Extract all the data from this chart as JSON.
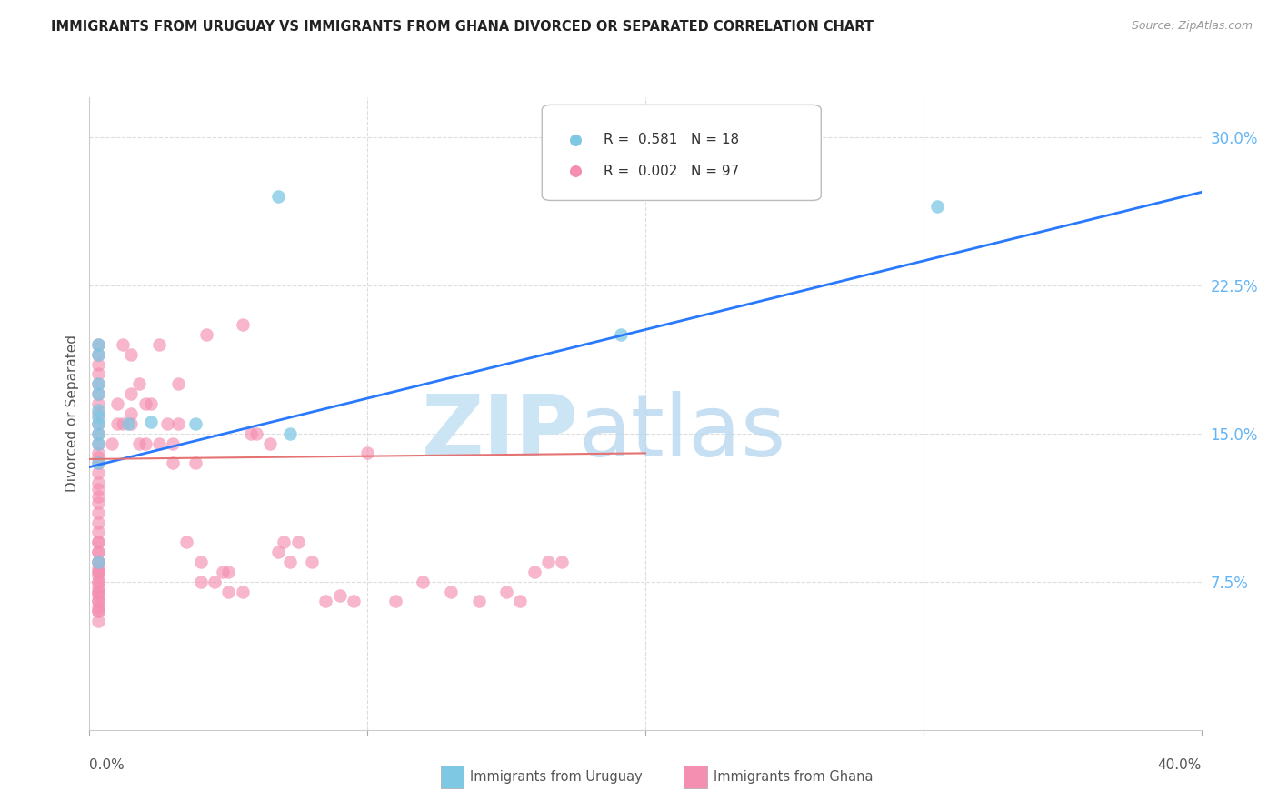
{
  "title": "IMMIGRANTS FROM URUGUAY VS IMMIGRANTS FROM GHANA DIVORCED OR SEPARATED CORRELATION CHART",
  "source": "Source: ZipAtlas.com",
  "ylabel": "Divorced or Separated",
  "ytick_labels": [
    "30.0%",
    "22.5%",
    "15.0%",
    "7.5%"
  ],
  "ytick_values": [
    0.3,
    0.225,
    0.15,
    0.075
  ],
  "xlim": [
    0.0,
    0.4
  ],
  "ylim": [
    0.0,
    0.32
  ],
  "legend_uruguay_R": "0.581",
  "legend_uruguay_N": "18",
  "legend_ghana_R": "0.002",
  "legend_ghana_N": "97",
  "color_uruguay": "#7ec8e3",
  "color_ghana": "#f48fb1",
  "color_line_uruguay": "#2979ff",
  "color_line_ghana": "#e57373",
  "color_axis_right": "#64b5f6",
  "color_grid": "#dddddd",
  "uruguay_line_x": [
    0.0,
    0.4
  ],
  "uruguay_line_y": [
    0.133,
    0.272
  ],
  "ghana_line_x": [
    0.0,
    0.2
  ],
  "ghana_line_y": [
    0.137,
    0.14
  ],
  "uruguay_x": [
    0.003,
    0.003,
    0.003,
    0.003,
    0.003,
    0.003,
    0.003,
    0.003,
    0.003,
    0.003,
    0.014,
    0.022,
    0.038,
    0.068,
    0.072,
    0.191,
    0.305,
    0.003
  ],
  "uruguay_y": [
    0.145,
    0.15,
    0.155,
    0.158,
    0.162,
    0.17,
    0.175,
    0.19,
    0.195,
    0.085,
    0.155,
    0.156,
    0.155,
    0.27,
    0.15,
    0.2,
    0.265,
    0.135
  ],
  "ghana_x": [
    0.003,
    0.003,
    0.003,
    0.003,
    0.003,
    0.003,
    0.003,
    0.003,
    0.003,
    0.003,
    0.003,
    0.003,
    0.003,
    0.003,
    0.003,
    0.003,
    0.003,
    0.003,
    0.003,
    0.003,
    0.003,
    0.003,
    0.003,
    0.003,
    0.003,
    0.003,
    0.003,
    0.003,
    0.003,
    0.003,
    0.003,
    0.003,
    0.003,
    0.003,
    0.003,
    0.008,
    0.01,
    0.01,
    0.012,
    0.012,
    0.015,
    0.015,
    0.015,
    0.015,
    0.018,
    0.018,
    0.02,
    0.02,
    0.022,
    0.025,
    0.025,
    0.028,
    0.03,
    0.03,
    0.032,
    0.032,
    0.035,
    0.038,
    0.04,
    0.04,
    0.042,
    0.045,
    0.048,
    0.05,
    0.05,
    0.055,
    0.055,
    0.058,
    0.06,
    0.065,
    0.068,
    0.07,
    0.072,
    0.075,
    0.08,
    0.085,
    0.09,
    0.095,
    0.1,
    0.11,
    0.12,
    0.13,
    0.14,
    0.15,
    0.155,
    0.16,
    0.165,
    0.17,
    0.003,
    0.003,
    0.003,
    0.003,
    0.003,
    0.003,
    0.003,
    0.003,
    0.003
  ],
  "ghana_y": [
    0.14,
    0.138,
    0.135,
    0.13,
    0.125,
    0.122,
    0.118,
    0.115,
    0.11,
    0.105,
    0.1,
    0.095,
    0.09,
    0.085,
    0.08,
    0.075,
    0.07,
    0.065,
    0.06,
    0.145,
    0.15,
    0.155,
    0.16,
    0.165,
    0.17,
    0.175,
    0.18,
    0.185,
    0.19,
    0.195,
    0.062,
    0.068,
    0.072,
    0.078,
    0.082,
    0.145,
    0.155,
    0.165,
    0.155,
    0.195,
    0.155,
    0.16,
    0.17,
    0.19,
    0.145,
    0.175,
    0.145,
    0.165,
    0.165,
    0.145,
    0.195,
    0.155,
    0.135,
    0.145,
    0.155,
    0.175,
    0.095,
    0.135,
    0.075,
    0.085,
    0.2,
    0.075,
    0.08,
    0.07,
    0.08,
    0.07,
    0.205,
    0.15,
    0.15,
    0.145,
    0.09,
    0.095,
    0.085,
    0.095,
    0.085,
    0.065,
    0.068,
    0.065,
    0.14,
    0.065,
    0.075,
    0.07,
    0.065,
    0.07,
    0.065,
    0.08,
    0.085,
    0.085,
    0.055,
    0.06,
    0.065,
    0.07,
    0.075,
    0.08,
    0.085,
    0.09,
    0.095
  ]
}
